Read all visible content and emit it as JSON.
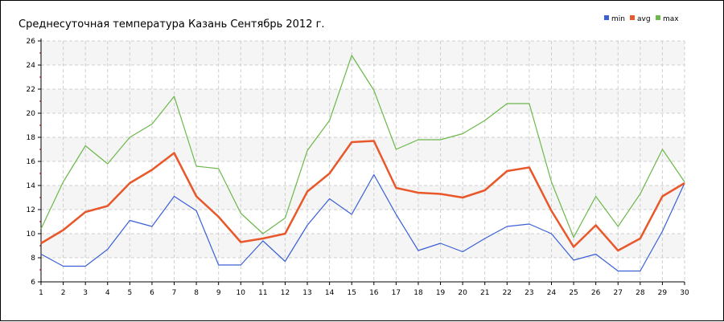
{
  "chart_data": {
    "type": "line",
    "title": "Среднесуточная температура Казань  Сентябрь 2012 г.",
    "xlabel": "",
    "ylabel": "",
    "x": [
      1,
      2,
      3,
      4,
      5,
      6,
      7,
      8,
      9,
      10,
      11,
      12,
      13,
      14,
      15,
      16,
      17,
      18,
      19,
      20,
      21,
      22,
      23,
      24,
      25,
      26,
      27,
      28,
      29,
      30
    ],
    "ylim": [
      6,
      26
    ],
    "yticks": [
      6,
      8,
      10,
      12,
      14,
      16,
      18,
      20,
      22,
      24,
      26
    ],
    "grid": true,
    "legend_position": "top-right",
    "series": [
      {
        "name": "min",
        "color": "#3a5fd6",
        "values": [
          8.3,
          7.3,
          7.3,
          8.7,
          11.1,
          10.6,
          13.1,
          11.9,
          7.4,
          7.4,
          9.4,
          7.7,
          10.7,
          12.9,
          11.6,
          14.9,
          11.6,
          8.6,
          9.2,
          8.5,
          9.6,
          10.6,
          10.8,
          10.0,
          7.8,
          8.3,
          6.9,
          6.9,
          10.2,
          14.2
        ]
      },
      {
        "name": "avg",
        "color": "#e8582a",
        "values": [
          9.2,
          10.3,
          11.8,
          12.3,
          14.2,
          15.3,
          16.7,
          13.1,
          11.4,
          9.3,
          9.6,
          10.0,
          13.5,
          15.0,
          17.6,
          17.7,
          13.8,
          13.4,
          13.3,
          13.0,
          13.6,
          15.2,
          15.5,
          11.9,
          8.9,
          10.7,
          8.6,
          9.6,
          13.1,
          14.2
        ]
      },
      {
        "name": "max",
        "color": "#6cb84a",
        "values": [
          10.4,
          14.3,
          17.3,
          15.8,
          18.0,
          19.1,
          21.4,
          15.6,
          15.4,
          11.7,
          10.0,
          11.3,
          16.9,
          19.4,
          24.8,
          21.9,
          17.0,
          17.8,
          17.8,
          18.3,
          19.4,
          20.8,
          20.8,
          14.3,
          9.7,
          13.1,
          10.6,
          13.3,
          17.0,
          14.3
        ]
      }
    ]
  }
}
